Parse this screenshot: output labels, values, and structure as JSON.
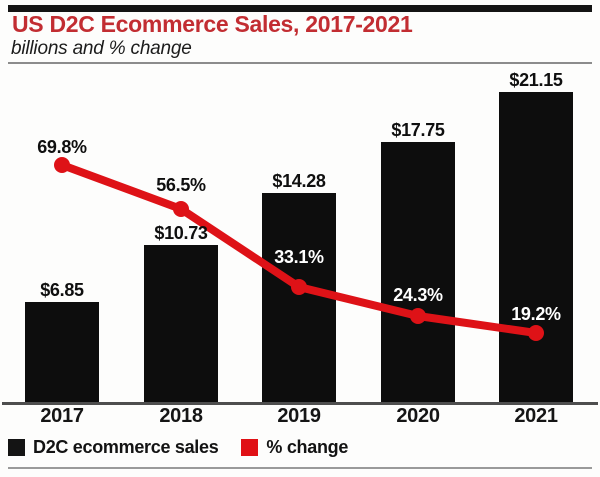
{
  "header": {
    "title": "US D2C Ecommerce Sales, 2017-2021",
    "subtitle": "billions and % change",
    "title_color": "#c22d32"
  },
  "legend": {
    "items": [
      {
        "label": "D2C ecommerce sales",
        "color": "#141414"
      },
      {
        "label": "% change",
        "color": "#e01015"
      }
    ]
  },
  "chart_data": {
    "type": "combo",
    "title": "US D2C Ecommerce Sales, 2017-2021",
    "subtitle": "billions and % change",
    "categories": [
      "2017",
      "2018",
      "2019",
      "2020",
      "2021"
    ],
    "series": [
      {
        "name": "D2C ecommerce sales",
        "type": "bar",
        "unit": "USD billions",
        "values": [
          6.85,
          10.73,
          14.28,
          17.75,
          21.15
        ],
        "labels": [
          "$6.85",
          "$10.73",
          "$14.28",
          "$17.75",
          "$21.15"
        ],
        "color": "#0d0d0d"
      },
      {
        "name": "% change",
        "type": "line",
        "unit": "percent",
        "values": [
          69.8,
          56.5,
          33.1,
          24.3,
          19.2
        ],
        "labels": [
          "69.8%",
          "56.5%",
          "33.1%",
          "24.3%",
          "19.2%"
        ],
        "color": "#de1217"
      }
    ],
    "xlabel": "",
    "ylabel": "",
    "axes_visible": false,
    "grid": false,
    "legend_position": "bottom"
  }
}
